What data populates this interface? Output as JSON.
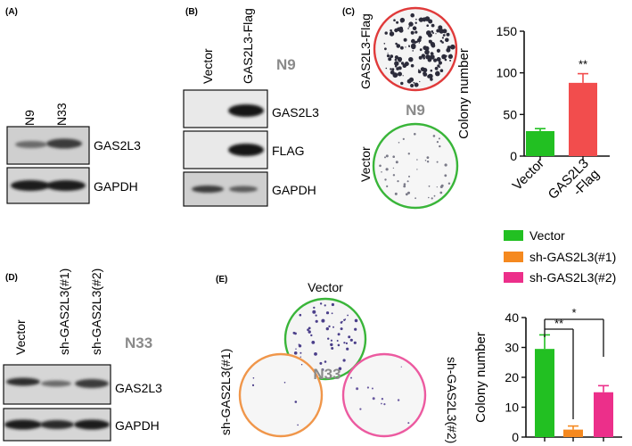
{
  "panel_labels": {
    "a": "(A)",
    "b": "(B)",
    "c": "(C)",
    "d": "(D)",
    "e": "(E)"
  },
  "panel_a": {
    "lanes": [
      "N9",
      "N33"
    ],
    "blots": [
      "GAS2L3",
      "GAPDH"
    ]
  },
  "panel_b": {
    "lanes": [
      "Vector",
      "GAS2L3-Flag"
    ],
    "cell_line": "N9",
    "blots": [
      "GAS2L3",
      "FLAG",
      "GAPDH"
    ]
  },
  "panel_c": {
    "dish_top": "GAS2L3-Flag",
    "dish_bottom": "Vector",
    "cell_line": "N9"
  },
  "panel_d": {
    "lanes": [
      "Vector",
      "sh-GAS2L3(#1)",
      "sh-GAS2L3(#2)"
    ],
    "cell_line": "N33",
    "blots": [
      "GAS2L3",
      "GAPDH"
    ]
  },
  "panel_e": {
    "dish_top": "Vector",
    "dish_left": "sh-GAS2L3(#1)",
    "dish_right": "sh-GAS2L3(#2)",
    "cell_line": "N33",
    "legend": [
      "Vector",
      "sh-GAS2L3(#1)",
      "sh-GAS2L3(#2)"
    ]
  },
  "colors": {
    "green": "#22c022",
    "red": "#f24d4d",
    "orange": "#f5891f",
    "pink": "#ec2f8a"
  },
  "chart_data": [
    {
      "type": "bar",
      "categories": [
        "Vector",
        "GAS2L3\n-Flag"
      ],
      "values": [
        30,
        88
      ],
      "errors": [
        3,
        11
      ],
      "ylabel": "Colony number",
      "ylim": [
        0,
        150
      ],
      "yticks": [
        0,
        50,
        100,
        150
      ],
      "annotations": [
        "**"
      ],
      "grid": false
    },
    {
      "type": "bar",
      "categories": [
        "Vector",
        "sh-GAS2L3(#1)",
        "sh-GAS2L3(#2)"
      ],
      "values": [
        29.5,
        2.5,
        15
      ],
      "errors": [
        4.7,
        1.2,
        2.2
      ],
      "ylabel": "Colony number",
      "ylim": [
        0,
        40
      ],
      "yticks": [
        0,
        10,
        20,
        30,
        40
      ],
      "annotations": [
        "**",
        "*"
      ],
      "legend": "top",
      "grid": false
    }
  ]
}
